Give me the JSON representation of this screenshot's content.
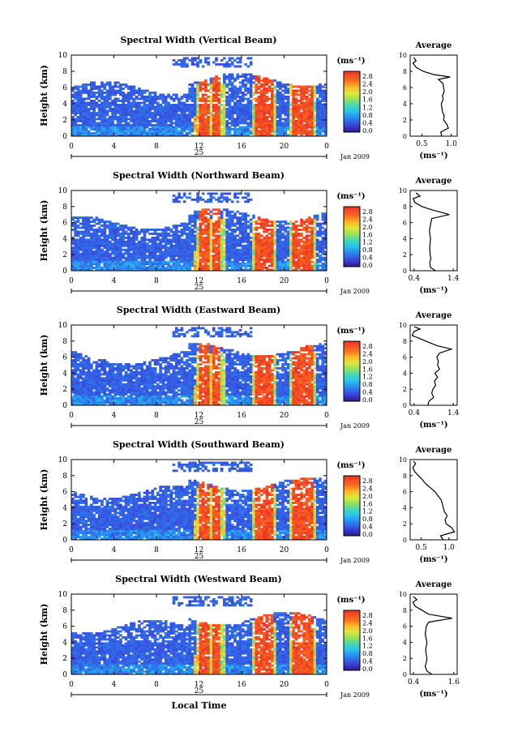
{
  "chart_data": [
    {
      "type": "heatmap",
      "title": "Spectral Width (Vertical Beam)",
      "ylabel": "Height (km)",
      "ylim": [
        0,
        10
      ],
      "x_ticks": [
        "0",
        "4",
        "8",
        "12",
        "16",
        "20",
        "0"
      ],
      "day_label": "25",
      "month_label": "Jan 2009",
      "colorbar_unit": "(ms⁻¹)",
      "colorbar_ticks": [
        "2.8",
        "2.4",
        "2.0",
        "1.6",
        "1.2",
        "0.8",
        "0.4",
        "0.0"
      ],
      "profile": {
        "title": "Average",
        "xlabel": "(ms⁻¹)",
        "x_ticks": [
          "0.5",
          "1.0"
        ],
        "xlim": [
          0.3,
          1.1
        ],
        "points": [
          [
            0.84,
            0
          ],
          [
            0.82,
            0.5
          ],
          [
            0.95,
            1.0
          ],
          [
            0.92,
            1.5
          ],
          [
            0.87,
            2.0
          ],
          [
            0.88,
            2.5
          ],
          [
            0.85,
            3.0
          ],
          [
            0.84,
            3.5
          ],
          [
            0.83,
            4.0
          ],
          [
            0.86,
            4.5
          ],
          [
            0.85,
            5.0
          ],
          [
            0.88,
            5.5
          ],
          [
            0.87,
            6.0
          ],
          [
            0.86,
            6.5
          ],
          [
            0.78,
            7.0
          ],
          [
            0.98,
            7.3
          ],
          [
            0.7,
            7.6
          ],
          [
            0.52,
            8.0
          ],
          [
            0.4,
            8.5
          ],
          [
            0.35,
            9.0
          ],
          [
            0.4,
            9.3
          ],
          [
            0.36,
            9.7
          ]
        ]
      }
    },
    {
      "type": "heatmap",
      "title": "Spectral Width (Northward Beam)",
      "ylabel": "Height (km)",
      "ylim": [
        0,
        10
      ],
      "x_ticks": [
        "0",
        "4",
        "8",
        "12",
        "16",
        "20",
        "0"
      ],
      "day_label": "25",
      "month_label": "Jan 2009",
      "colorbar_unit": "(ms⁻¹)",
      "colorbar_ticks": [
        "2.8",
        "2.4",
        "2.0",
        "1.6",
        "1.2",
        "0.8",
        "0.4",
        "0.0"
      ],
      "profile": {
        "title": "Average",
        "xlabel": "(ms⁻¹)",
        "x_ticks": [
          "0.4",
          "1.4"
        ],
        "xlim": [
          0.3,
          1.5
        ],
        "points": [
          [
            0.95,
            0
          ],
          [
            0.82,
            0.4
          ],
          [
            0.8,
            1.0
          ],
          [
            0.83,
            1.5
          ],
          [
            0.81,
            2.0
          ],
          [
            0.8,
            3.0
          ],
          [
            0.82,
            4.0
          ],
          [
            0.79,
            5.0
          ],
          [
            0.83,
            6.0
          ],
          [
            0.85,
            6.5
          ],
          [
            1.3,
            7.0
          ],
          [
            0.85,
            7.6
          ],
          [
            0.6,
            8.0
          ],
          [
            0.42,
            8.5
          ],
          [
            0.38,
            9.0
          ],
          [
            0.55,
            9.3
          ],
          [
            0.45,
            9.7
          ]
        ]
      }
    },
    {
      "type": "heatmap",
      "title": "Spectral Width (Eastward Beam)",
      "ylabel": "Height (km)",
      "ylim": [
        0,
        10
      ],
      "x_ticks": [
        "0",
        "4",
        "8",
        "12",
        "16",
        "20",
        "0"
      ],
      "day_label": "25",
      "month_label": "Jan 2009",
      "colorbar_unit": "(ms⁻¹)",
      "colorbar_ticks": [
        "2.8",
        "2.4",
        "2.0",
        "1.6",
        "1.2",
        "0.8",
        "0.4",
        "0.0"
      ],
      "profile": {
        "title": "Average",
        "xlabel": "(ms⁻¹)",
        "x_ticks": [
          "0.4",
          "1.4"
        ],
        "xlim": [
          0.3,
          1.5
        ],
        "points": [
          [
            0.75,
            0
          ],
          [
            0.78,
            0.5
          ],
          [
            0.9,
            1.0
          ],
          [
            0.85,
            1.5
          ],
          [
            0.88,
            2.0
          ],
          [
            0.95,
            2.5
          ],
          [
            0.92,
            3.0
          ],
          [
            1.0,
            3.5
          ],
          [
            0.93,
            4.0
          ],
          [
            1.05,
            4.5
          ],
          [
            1.0,
            5.0
          ],
          [
            1.02,
            5.5
          ],
          [
            0.98,
            6.0
          ],
          [
            1.05,
            6.5
          ],
          [
            1.35,
            7.0
          ],
          [
            1.0,
            7.4
          ],
          [
            0.8,
            7.8
          ],
          [
            0.6,
            8.2
          ],
          [
            0.35,
            8.7
          ],
          [
            0.4,
            9.2
          ],
          [
            0.55,
            9.5
          ],
          [
            0.4,
            9.8
          ]
        ]
      }
    },
    {
      "type": "heatmap",
      "title": "Spectral Width (Southward Beam)",
      "ylabel": "Height (km)",
      "ylim": [
        0,
        10
      ],
      "x_ticks": [
        "0",
        "4",
        "8",
        "12",
        "16",
        "20",
        "0"
      ],
      "day_label": "25",
      "month_label": "Jan 2009",
      "colorbar_unit": "(ms⁻¹)",
      "colorbar_ticks": [
        "2.8",
        "2.4",
        "2.0",
        "1.6",
        "1.2",
        "0.8",
        "0.4",
        "0.0"
      ],
      "profile": {
        "title": "Average",
        "xlabel": "(ms⁻¹)",
        "x_ticks": [
          "0.5",
          "1.0"
        ],
        "xlim": [
          0.3,
          1.15
        ],
        "points": [
          [
            0.9,
            0
          ],
          [
            0.85,
            0.5
          ],
          [
            1.1,
            1.0
          ],
          [
            1.05,
            1.5
          ],
          [
            0.95,
            2.0
          ],
          [
            0.93,
            2.5
          ],
          [
            0.97,
            3.0
          ],
          [
            0.92,
            3.5
          ],
          [
            0.9,
            4.0
          ],
          [
            0.88,
            4.5
          ],
          [
            0.86,
            5.0
          ],
          [
            0.8,
            5.5
          ],
          [
            0.75,
            6.0
          ],
          [
            0.66,
            6.5
          ],
          [
            0.58,
            7.0
          ],
          [
            0.52,
            7.5
          ],
          [
            0.45,
            8.0
          ],
          [
            0.38,
            8.5
          ],
          [
            0.35,
            9.0
          ],
          [
            0.4,
            9.5
          ],
          [
            0.36,
            9.8
          ]
        ]
      }
    },
    {
      "type": "heatmap",
      "title": "Spectral Width (Westward Beam)",
      "ylabel": "Height (km)",
      "ylim": [
        0,
        10
      ],
      "x_ticks": [
        "0",
        "4",
        "8",
        "12",
        "16",
        "20",
        "0"
      ],
      "day_label": "25",
      "month_label": "Jan 2009",
      "xlabel": "Local Time",
      "colorbar_unit": "(ms⁻¹)",
      "colorbar_ticks": [
        "2.8",
        "2.4",
        "2.0",
        "1.6",
        "1.2",
        "0.8",
        "0.4",
        "0.0"
      ],
      "profile": {
        "title": "Average",
        "xlabel": "(ms⁻¹)",
        "x_ticks": [
          "0.4",
          "1.6"
        ],
        "xlim": [
          0.3,
          1.7
        ],
        "points": [
          [
            0.95,
            0
          ],
          [
            0.8,
            0.4
          ],
          [
            0.75,
            1.0
          ],
          [
            0.78,
            1.5
          ],
          [
            0.8,
            2.0
          ],
          [
            0.76,
            3.0
          ],
          [
            0.8,
            4.0
          ],
          [
            0.75,
            5.0
          ],
          [
            0.78,
            6.0
          ],
          [
            0.85,
            6.5
          ],
          [
            1.55,
            7.0
          ],
          [
            0.85,
            7.5
          ],
          [
            0.65,
            8.0
          ],
          [
            0.45,
            8.5
          ],
          [
            0.38,
            9.0
          ],
          [
            0.5,
            9.3
          ],
          [
            0.4,
            9.7
          ]
        ]
      }
    }
  ]
}
